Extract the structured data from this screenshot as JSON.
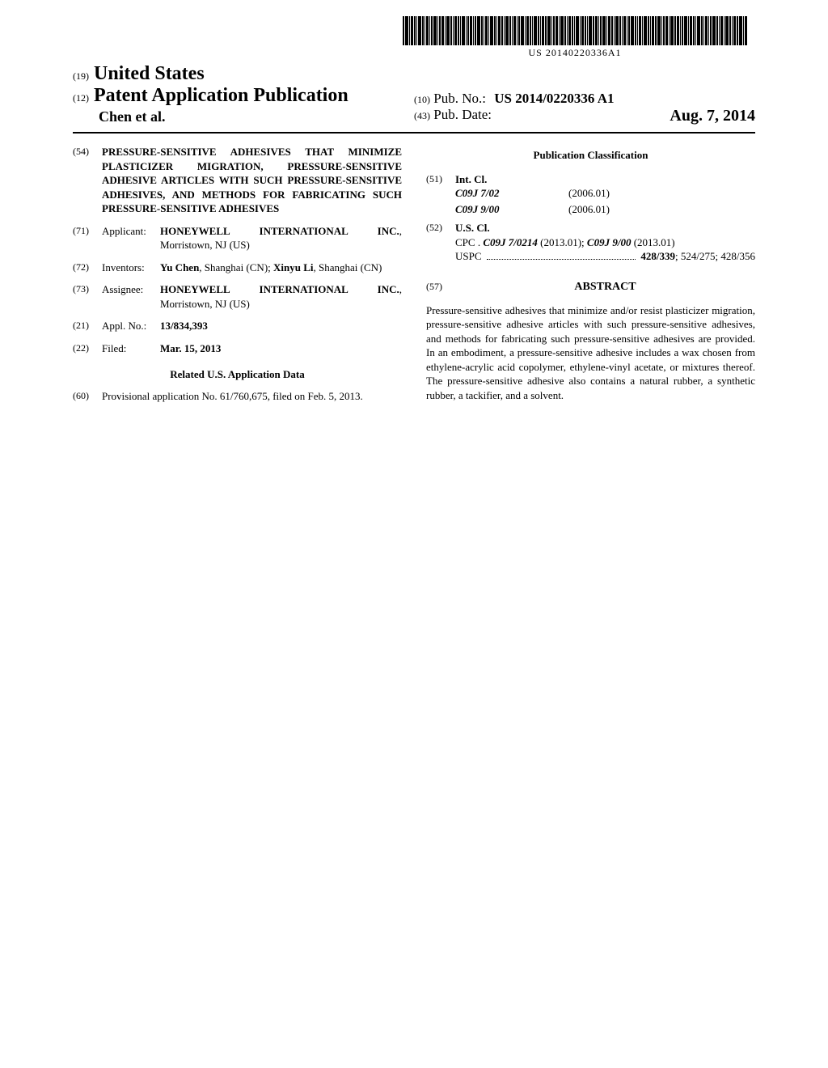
{
  "barcode_number": "US 20140220336A1",
  "header": {
    "country_code": "(19)",
    "country": "United States",
    "pub_type_code": "(12)",
    "pub_type": "Patent Application Publication",
    "authors": "Chen et al.",
    "pubno_code": "(10)",
    "pubno_label": "Pub. No.:",
    "pubno_value": "US 2014/0220336 A1",
    "date_code": "(43)",
    "date_label": "Pub. Date:",
    "date_value": "Aug. 7, 2014"
  },
  "fields": {
    "title_code": "(54)",
    "title": "PRESSURE-SENSITIVE ADHESIVES THAT MINIMIZE PLASTICIZER MIGRATION, PRESSURE-SENSITIVE ADHESIVE ARTICLES WITH SUCH PRESSURE-SENSITIVE ADHESIVES, AND METHODS FOR FABRICATING SUCH PRESSURE-SENSITIVE ADHESIVES",
    "applicant_code": "(71)",
    "applicant_label": "Applicant:",
    "applicant_name": "HONEYWELL INTERNATIONAL INC.",
    "applicant_loc": ", Morristown, NJ (US)",
    "inventors_code": "(72)",
    "inventors_label": "Inventors:",
    "inventor1_name": "Yu Chen",
    "inventor1_loc": ", Shanghai (CN); ",
    "inventor2_name": "Xinyu Li",
    "inventor2_loc": ", Shanghai (CN)",
    "assignee_code": "(73)",
    "assignee_label": "Assignee:",
    "assignee_name": "HONEYWELL INTERNATIONAL INC.",
    "assignee_loc": ", Morristown, NJ (US)",
    "applno_code": "(21)",
    "applno_label": "Appl. No.:",
    "applno_value": "13/834,393",
    "filed_code": "(22)",
    "filed_label": "Filed:",
    "filed_value": "Mar. 15, 2013",
    "related_heading": "Related U.S. Application Data",
    "provisional_code": "(60)",
    "provisional_text": "Provisional application No. 61/760,675, filed on Feb. 5, 2013."
  },
  "classification": {
    "heading": "Publication Classification",
    "intcl_code": "(51)",
    "intcl_label": "Int. Cl.",
    "intcl_rows": [
      {
        "cls": "C09J 7/02",
        "year": "(2006.01)"
      },
      {
        "cls": "C09J 9/00",
        "year": "(2006.01)"
      }
    ],
    "uscl_code": "(52)",
    "uscl_label": "U.S. Cl.",
    "cpc_prefix": "CPC .",
    "cpc1": "C09J 7/0214",
    "cpc1_year": " (2013.01); ",
    "cpc2": "C09J 9/00",
    "cpc2_year": " (2013.01)",
    "uspc_label": "USPC",
    "uspc_main": "428/339",
    "uspc_rest": "; 524/275; 428/356"
  },
  "abstract": {
    "code": "(57)",
    "heading": "ABSTRACT",
    "body": "Pressure-sensitive adhesives that minimize and/or resist plasticizer migration, pressure-sensitive adhesive articles with such pressure-sensitive adhesives, and methods for fabricating such pressure-sensitive adhesives are provided. In an embodiment, a pressure-sensitive adhesive includes a wax chosen from ethylene-acrylic acid copolymer, ethylene-vinyl acetate, or mixtures thereof. The pressure-sensitive adhesive also contains a natural rubber, a synthetic rubber, a tackifier, and a solvent."
  },
  "barcode_widths": [
    2,
    4,
    1,
    3,
    2,
    1,
    4,
    2,
    1,
    3,
    1,
    2,
    4,
    1,
    2,
    3,
    1,
    4,
    2,
    1,
    3,
    2,
    1,
    4,
    1,
    2,
    3,
    1,
    2,
    4,
    2,
    1,
    3,
    1,
    4,
    2,
    1,
    3,
    2,
    1,
    4,
    2,
    1,
    3,
    1,
    2,
    4,
    1,
    3,
    2,
    1,
    4,
    2,
    1,
    3,
    2,
    4,
    1,
    2,
    3,
    1,
    4,
    2,
    1,
    3,
    2,
    1,
    4,
    1,
    3,
    2,
    1,
    4,
    2,
    3,
    1,
    2,
    4,
    1,
    3,
    2,
    1,
    4,
    2,
    1,
    3,
    1,
    2,
    4,
    2,
    1,
    3,
    1,
    4,
    2,
    1,
    3,
    2,
    4,
    1,
    2,
    3,
    1,
    4,
    2,
    3,
    1,
    2,
    4,
    1,
    3,
    2,
    1,
    4,
    2,
    1,
    3,
    1,
    2,
    4,
    2,
    1,
    3,
    1,
    4,
    2,
    1,
    3,
    2,
    4,
    1,
    3
  ]
}
